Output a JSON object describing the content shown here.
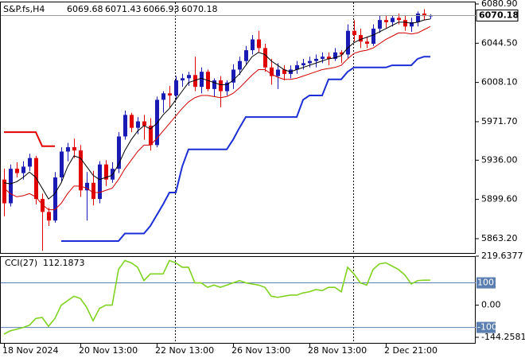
{
  "chart_data": [
    {
      "type": "candlestick",
      "symbol": "S&P.fs,H4",
      "categories": [
        "18 Nov 2024",
        null,
        null,
        null,
        null,
        null,
        null,
        null,
        null,
        null,
        null,
        null,
        "20 Nov 13:00",
        null,
        null,
        null,
        null,
        null,
        null,
        null,
        null,
        null,
        null,
        null,
        "22 Nov 13:00",
        null,
        null,
        null,
        null,
        null,
        null,
        null,
        null,
        null,
        null,
        null,
        "26 Nov 13:00",
        null,
        null,
        null,
        null,
        null,
        null,
        null,
        null,
        null,
        null,
        null,
        "28 Nov 13:00",
        null,
        null,
        null,
        null,
        null,
        null,
        null,
        null,
        null,
        null,
        null,
        "2 Dec 21:00",
        null,
        null,
        null,
        null,
        null,
        null,
        null
      ],
      "open": [
        5918,
        5896,
        5928,
        5924,
        5930,
        5938,
        5900,
        5888,
        5880,
        5920,
        5944,
        5948,
        5945,
        5908,
        5915,
        5900,
        5932,
        5918,
        5928,
        5958,
        5978,
        5966,
        5972,
        5968,
        5950,
        5992,
        5998,
        5996,
        6010,
        6012,
        6015,
        6004,
        6018,
        6002,
        6010,
        6000,
        6008,
        6020,
        6028,
        6038,
        6048,
        6040,
        6022,
        6014,
        6020,
        6016,
        6020,
        6024,
        6026,
        6028,
        6030,
        6032,
        6030,
        6036,
        6034,
        6056,
        6052,
        6046,
        6044,
        6058,
        6066,
        6064,
        6068,
        6066,
        6060,
        6064,
        6072,
        6069.68
      ],
      "high": [
        5928,
        5932,
        5934,
        5935,
        5942,
        5940,
        5905,
        5892,
        5925,
        5948,
        5952,
        5956,
        5950,
        5925,
        5926,
        5935,
        5936,
        5934,
        5962,
        5982,
        5980,
        5976,
        5978,
        5975,
        5995,
        6000,
        6005,
        6014,
        6016,
        6018,
        6032,
        6022,
        6020,
        6012,
        6014,
        6010,
        6025,
        6032,
        6042,
        6052,
        6056,
        6044,
        6030,
        6026,
        6024,
        6024,
        6028,
        6030,
        6032,
        6034,
        6036,
        6036,
        6040,
        6038,
        6062,
        6066,
        6058,
        6050,
        6062,
        6070,
        6070,
        6070,
        6072,
        6070,
        6068,
        6074,
        6076,
        6071.43
      ],
      "low": [
        5884,
        5893,
        5920,
        5918,
        5926,
        5895,
        5852,
        5875,
        5878,
        5916,
        5935,
        5938,
        5902,
        5880,
        5894,
        5896,
        5912,
        5915,
        5924,
        5955,
        5962,
        5960,
        5955,
        5945,
        5948,
        5980,
        5985,
        5992,
        6004,
        6005,
        6000,
        5998,
        6000,
        5995,
        5985,
        5996,
        6002,
        6015,
        6024,
        6034,
        6036,
        6018,
        6006,
        6002,
        6010,
        6012,
        6016,
        6020,
        6022,
        6022,
        6026,
        6024,
        6028,
        6026,
        6030,
        6046,
        6040,
        6040,
        6042,
        6054,
        6058,
        6060,
        6062,
        6056,
        6055,
        6060,
        6066,
        6066.93
      ],
      "close": [
        5896,
        5928,
        5924,
        5930,
        5938,
        5900,
        5888,
        5880,
        5920,
        5944,
        5948,
        5945,
        5908,
        5915,
        5900,
        5932,
        5918,
        5928,
        5958,
        5978,
        5966,
        5972,
        5968,
        5950,
        5992,
        5998,
        5996,
        6010,
        6012,
        6015,
        6004,
        6018,
        6002,
        6010,
        6000,
        6008,
        6020,
        6028,
        6038,
        6048,
        6040,
        6022,
        6014,
        6020,
        6016,
        6020,
        6024,
        6026,
        6028,
        6030,
        6032,
        6030,
        6036,
        6034,
        6056,
        6052,
        6046,
        6044,
        6058,
        6066,
        6064,
        6068,
        6066,
        6060,
        6064,
        6072,
        6069.68,
        6070.18
      ],
      "up_color": "#1a1ab4",
      "down_color": "#e00000",
      "series": [
        {
          "color": "#000000",
          "width": 1,
          "values": [
            5915,
            5914,
            5916,
            5920,
            5925,
            5920,
            5910,
            5900,
            5905,
            5915,
            5930,
            5940,
            5938,
            5930,
            5922,
            5918,
            5920,
            5922,
            5932,
            5945,
            5955,
            5963,
            5968,
            5965,
            5970,
            5978,
            5984,
            5992,
            6000,
            6008,
            6010,
            6012,
            6010,
            6008,
            6006,
            6006,
            6010,
            6016,
            6024,
            6032,
            6036,
            6034,
            6028,
            6024,
            6020,
            6018,
            6020,
            6022,
            6024,
            6026,
            6028,
            6030,
            6031,
            6033,
            6040,
            6045,
            6048,
            6050,
            6052,
            6055,
            6058,
            6061,
            6064,
            6064,
            6063,
            6064,
            6066,
            6067
          ]
        },
        {
          "color": "#d40000",
          "width": 1,
          "values": [
            5910,
            5905,
            5902,
            5903,
            5905,
            5902,
            5895,
            5890,
            5890,
            5896,
            5905,
            5912,
            5912,
            5910,
            5906,
            5906,
            5908,
            5910,
            5918,
            5928,
            5936,
            5944,
            5950,
            5950,
            5956,
            5963,
            5970,
            5977,
            5984,
            5990,
            5994,
            5996,
            5996,
            5995,
            5994,
            5995,
            5998,
            6003,
            6009,
            6015,
            6020,
            6020,
            6016,
            6013,
            6011,
            6011,
            6012,
            6014,
            6016,
            6018,
            6020,
            6021,
            6022,
            6024,
            6030,
            6035,
            6037,
            6038,
            6040,
            6044,
            6048,
            6051,
            6054,
            6054,
            6053,
            6054,
            6057,
            6060
          ]
        },
        {
          "color": "#e00000",
          "width": 2,
          "values": [
            5962,
            5962,
            5962,
            5962,
            5962,
            5962,
            5949,
            5949,
            5949,
            null,
            null,
            null,
            null,
            null,
            null,
            null,
            null,
            null,
            null,
            null,
            null,
            null,
            null,
            null,
            null,
            null,
            null,
            null,
            null,
            null,
            null,
            null,
            null,
            null,
            null,
            null,
            null,
            null,
            null,
            null,
            null,
            null,
            null,
            null,
            null,
            null,
            null,
            null,
            null,
            null,
            null,
            null,
            null,
            null,
            null,
            null,
            null,
            null,
            null,
            null,
            null,
            null,
            null,
            null,
            null,
            null,
            null,
            null
          ]
        },
        {
          "color": "#1c2fd6",
          "width": 2,
          "values": [
            null,
            null,
            null,
            null,
            null,
            null,
            null,
            null,
            null,
            5861,
            5861,
            5861,
            5861,
            5861,
            5861,
            5861,
            5861,
            5861,
            5861,
            5868,
            5868,
            5868,
            5868,
            5875,
            5885,
            5895,
            5906,
            5906,
            5930,
            5946,
            5946,
            5946,
            5946,
            5946,
            5946,
            5946,
            5955,
            5966,
            5976,
            5976,
            5976,
            5976,
            5976,
            5976,
            5976,
            5976,
            5976,
            5992,
            5996,
            5996,
            5996,
            6011,
            6011,
            6011,
            6018,
            6022,
            6022,
            6022,
            6022,
            6022,
            6022,
            6024,
            6024,
            6024,
            6024,
            6030,
            6032,
            6032
          ]
        }
      ],
      "ylim": [
        5849.9,
        6083.1
      ],
      "yticks": [
        {
          "value": 6080.9,
          "label": "6080.90"
        },
        {
          "value": 6044.5,
          "label": "6044.50"
        },
        {
          "value": 6008.1,
          "label": "6008.10"
        },
        {
          "value": 5971.7,
          "label": "5971.70"
        },
        {
          "value": 5936,
          "label": "5936.00"
        },
        {
          "value": 5899.6,
          "label": "5899.60"
        },
        {
          "value": 5863.2,
          "label": "5863.20"
        }
      ]
    },
    {
      "type": "line",
      "title": "CCI(27)",
      "series": [
        {
          "color": "#7fd320",
          "values": [
            -130,
            -115,
            -108,
            -100,
            -90,
            -60,
            -55,
            -95,
            -60,
            0,
            20,
            40,
            30,
            -10,
            -70,
            -15,
            0,
            0,
            160,
            200,
            190,
            170,
            110,
            140,
            140,
            140,
            200,
            190,
            170,
            170,
            100,
            100,
            80,
            90,
            80,
            90,
            100,
            110,
            100,
            95,
            90,
            80,
            40,
            35,
            40,
            45,
            45,
            55,
            60,
            70,
            65,
            80,
            80,
            60,
            170,
            140,
            100,
            90,
            160,
            185,
            190,
            175,
            160,
            135,
            95,
            110,
            112,
            112.1873
          ]
        }
      ],
      "ylim": [
        -144.2581,
        219.6377
      ],
      "yticks": [
        219.6377,
        {
          "value": 0,
          "label": "0.00"
        },
        -144.2581
      ],
      "levels": [
        100,
        -100
      ],
      "level_color": "#5b7fb0"
    }
  ]
}
